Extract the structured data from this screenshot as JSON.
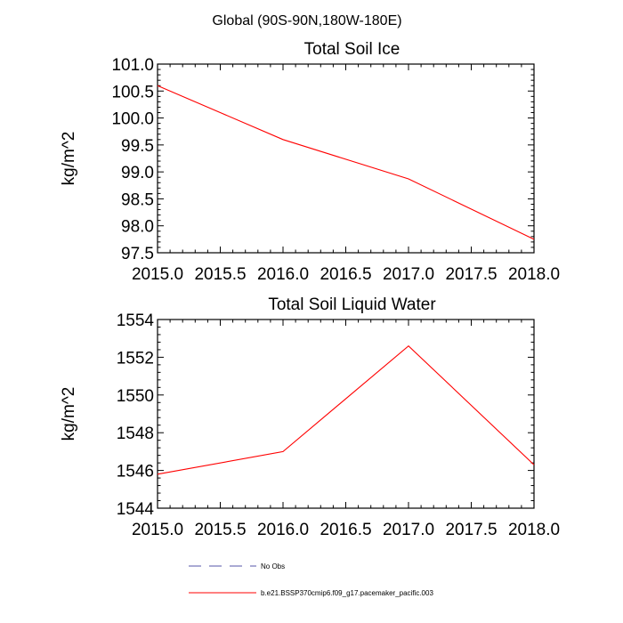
{
  "figure": {
    "suptitle": "Global (90S-90N,180W-180E)"
  },
  "chart_data": [
    {
      "type": "line",
      "title": "Total Soil Ice",
      "ylabel": "kg/m^2",
      "xlabel": "",
      "xlim": [
        2015.0,
        2018.0
      ],
      "ylim": [
        97.5,
        101.0
      ],
      "xticks": [
        "2015.0",
        "2015.5",
        "2016.0",
        "2016.5",
        "2017.0",
        "2017.5",
        "2018.0"
      ],
      "yticks": [
        "97.5",
        "98.0",
        "98.5",
        "99.0",
        "99.5",
        "100.0",
        "100.5",
        "101.0"
      ],
      "grid": false,
      "series": [
        {
          "name": "b.e21.BSSP370cmip6.f09_g17.pacemaker_pacific.003",
          "color": "#ff0000",
          "x": [
            2015.0,
            2016.0,
            2017.0,
            2018.0
          ],
          "y": [
            100.6,
            99.6,
            98.87,
            97.75
          ]
        }
      ]
    },
    {
      "type": "line",
      "title": "Total Soil Liquid Water",
      "ylabel": "kg/m^2",
      "xlabel": "",
      "xlim": [
        2015.0,
        2018.0
      ],
      "ylim": [
        1544,
        1554
      ],
      "xticks": [
        "2015.0",
        "2015.5",
        "2016.0",
        "2016.5",
        "2017.0",
        "2017.5",
        "2018.0"
      ],
      "yticks": [
        "1544",
        "1546",
        "1548",
        "1550",
        "1552",
        "1554"
      ],
      "grid": false,
      "series": [
        {
          "name": "b.e21.BSSP370cmip6.f09_g17.pacemaker_pacific.003",
          "color": "#ff0000",
          "x": [
            2015.0,
            2016.0,
            2017.0,
            2018.0
          ],
          "y": [
            1545.8,
            1547.0,
            1552.6,
            1546.3
          ]
        }
      ]
    }
  ],
  "legend": {
    "placement": "bottom",
    "items": [
      {
        "label": "No Obs",
        "color": "#5555aa",
        "style": "dashed"
      },
      {
        "label": "b.e21.BSSP370cmip6.f09_g17.pacemaker_pacific.003",
        "color": "#ff0000",
        "style": "solid"
      }
    ]
  }
}
